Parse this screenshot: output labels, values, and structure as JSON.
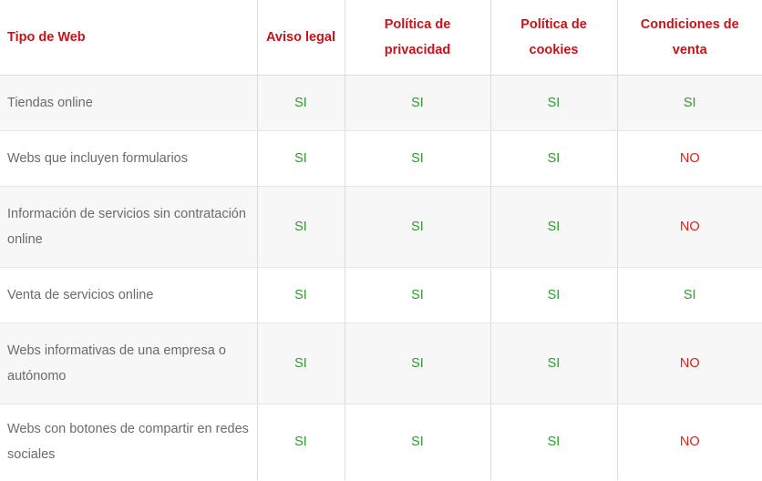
{
  "headers": [
    "Tipo de Web",
    "Aviso legal",
    "Política de privacidad",
    "Política de cookies",
    "Condiciones de venta"
  ],
  "rows": [
    {
      "label": "Tiendas online",
      "values": [
        "SI",
        "SI",
        "SI",
        "SI"
      ]
    },
    {
      "label": "Webs que incluyen formularios",
      "values": [
        "SI",
        "SI",
        "SI",
        "NO"
      ]
    },
    {
      "label": "Información de servicios sin contratación online",
      "values": [
        "SI",
        "SI",
        "SI",
        "NO"
      ]
    },
    {
      "label": "Venta de servicios online",
      "values": [
        "SI",
        "SI",
        "SI",
        "SI"
      ]
    },
    {
      "label": "Webs informativas de una empresa o autónomo",
      "values": [
        "SI",
        "SI",
        "SI",
        "NO"
      ]
    },
    {
      "label": "Webs con botones de compartir en redes sociales",
      "values": [
        "SI",
        "SI",
        "SI",
        "NO"
      ]
    }
  ],
  "colors": {
    "header": "#c7141a",
    "yes": "#2f9a2f",
    "no": "#e0201a",
    "row_alt": "#f7f7f7"
  }
}
